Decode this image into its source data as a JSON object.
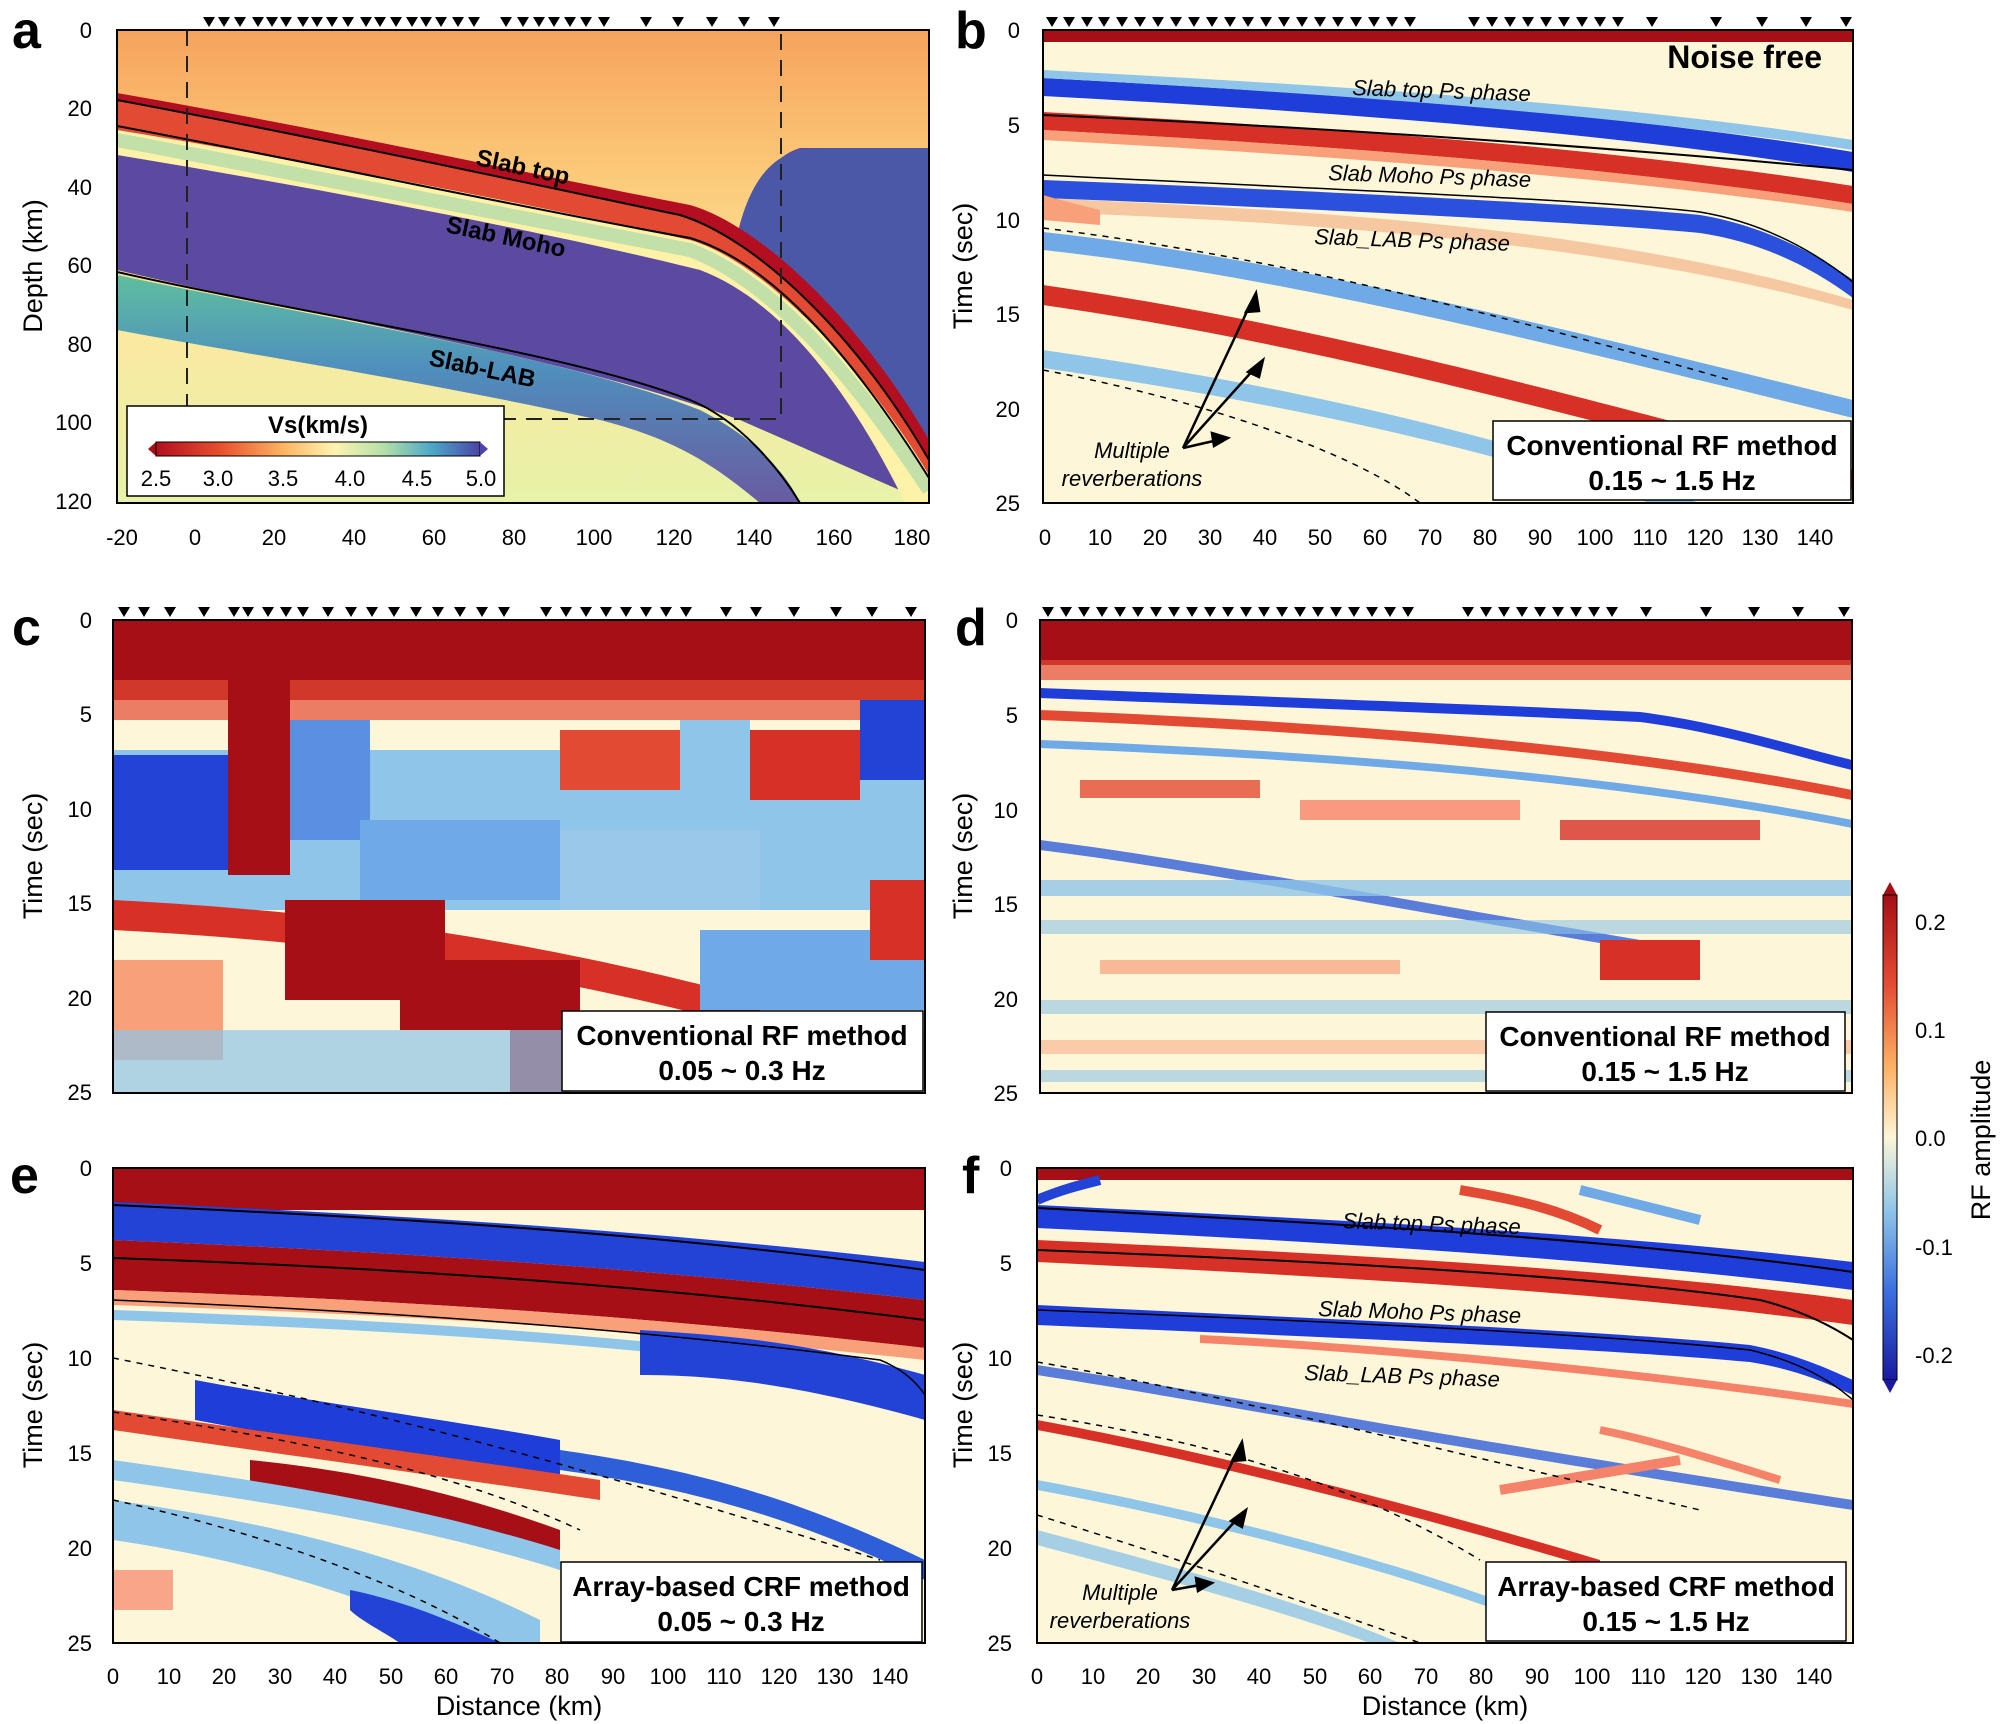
{
  "panels": {
    "a": {
      "letter": "a",
      "ylabel": "Depth (km)",
      "yticks": [
        "0",
        "20",
        "40",
        "60",
        "80",
        "100",
        "120"
      ],
      "xticks": [
        "-20",
        "0",
        "20",
        "40",
        "60",
        "80",
        "100",
        "120",
        "140",
        "160",
        "180"
      ],
      "labels": {
        "slab_top": "Slab top",
        "slab_moho": "Slab Moho",
        "slab_lab": "Slab-LAB"
      },
      "colorbar": {
        "title": "Vs(km/s)",
        "ticks": [
          "2.5",
          "3.0",
          "3.5",
          "4.0",
          "4.5",
          "5.0"
        ]
      }
    },
    "b": {
      "letter": "b",
      "ylabel": "Time (sec)",
      "yticks": [
        "0",
        "5",
        "10",
        "15",
        "20",
        "25"
      ],
      "xticks": [
        "0",
        "10",
        "20",
        "30",
        "40",
        "50",
        "60",
        "70",
        "80",
        "90",
        "100",
        "110",
        "120",
        "130",
        "140"
      ],
      "noise_label": "Noise free",
      "phase_top": "Slab top Ps phase",
      "phase_moho": "Slab Moho Ps phase",
      "phase_lab": "Slab_LAB Ps phase",
      "multiple_1": "Multiple",
      "multiple_2": "reverberations",
      "method": "Conventional RF method",
      "freq": "0.15 ~ 1.5 Hz"
    },
    "c": {
      "letter": "c",
      "ylabel": "Time (sec)",
      "yticks": [
        "0",
        "5",
        "10",
        "15",
        "20",
        "25"
      ],
      "method": "Conventional RF method",
      "freq": "0.05 ~ 0.3 Hz"
    },
    "d": {
      "letter": "d",
      "ylabel": "Time (sec)",
      "yticks": [
        "0",
        "5",
        "10",
        "15",
        "20",
        "25"
      ],
      "method": "Conventional RF method",
      "freq": "0.15 ~ 1.5 Hz"
    },
    "e": {
      "letter": "e",
      "ylabel": "Time (sec)",
      "yticks": [
        "0",
        "5",
        "10",
        "15",
        "20",
        "25"
      ],
      "xticks": [
        "0",
        "10",
        "20",
        "30",
        "40",
        "50",
        "60",
        "70",
        "80",
        "90",
        "100",
        "110",
        "120",
        "130",
        "140"
      ],
      "xlabel": "Distance (km)",
      "method": "Array-based CRF method",
      "freq": "0.05 ~ 0.3 Hz"
    },
    "f": {
      "letter": "f",
      "ylabel": "Time (sec)",
      "yticks": [
        "0",
        "5",
        "10",
        "15",
        "20",
        "25"
      ],
      "xticks": [
        "0",
        "10",
        "20",
        "30",
        "40",
        "50",
        "60",
        "70",
        "80",
        "90",
        "100",
        "110",
        "120",
        "130",
        "140"
      ],
      "xlabel": "Distance (km)",
      "phase_top": "Slab top Ps phase",
      "phase_moho": "Slab Moho Ps phase",
      "phase_lab": "Slab_LAB Ps phase",
      "multiple_1": "Multiple",
      "multiple_2": "reverberations",
      "method": "Array-based CRF method",
      "freq": "0.15 ~ 1.5 Hz"
    }
  },
  "rf_colorbar": {
    "label": "RF amplitude",
    "ticks": [
      "0.2",
      "0.1",
      "0.0",
      "-0.1",
      "-0.2"
    ]
  },
  "colors": {
    "deep_red": "#a50f15",
    "red": "#d73027",
    "light_yellow": "#fdf6cf",
    "light_blue": "#91c4e8",
    "blue": "#2343d6",
    "deep_blue": "#1a1aa0",
    "mantle_purple": "#5c4aa0"
  }
}
